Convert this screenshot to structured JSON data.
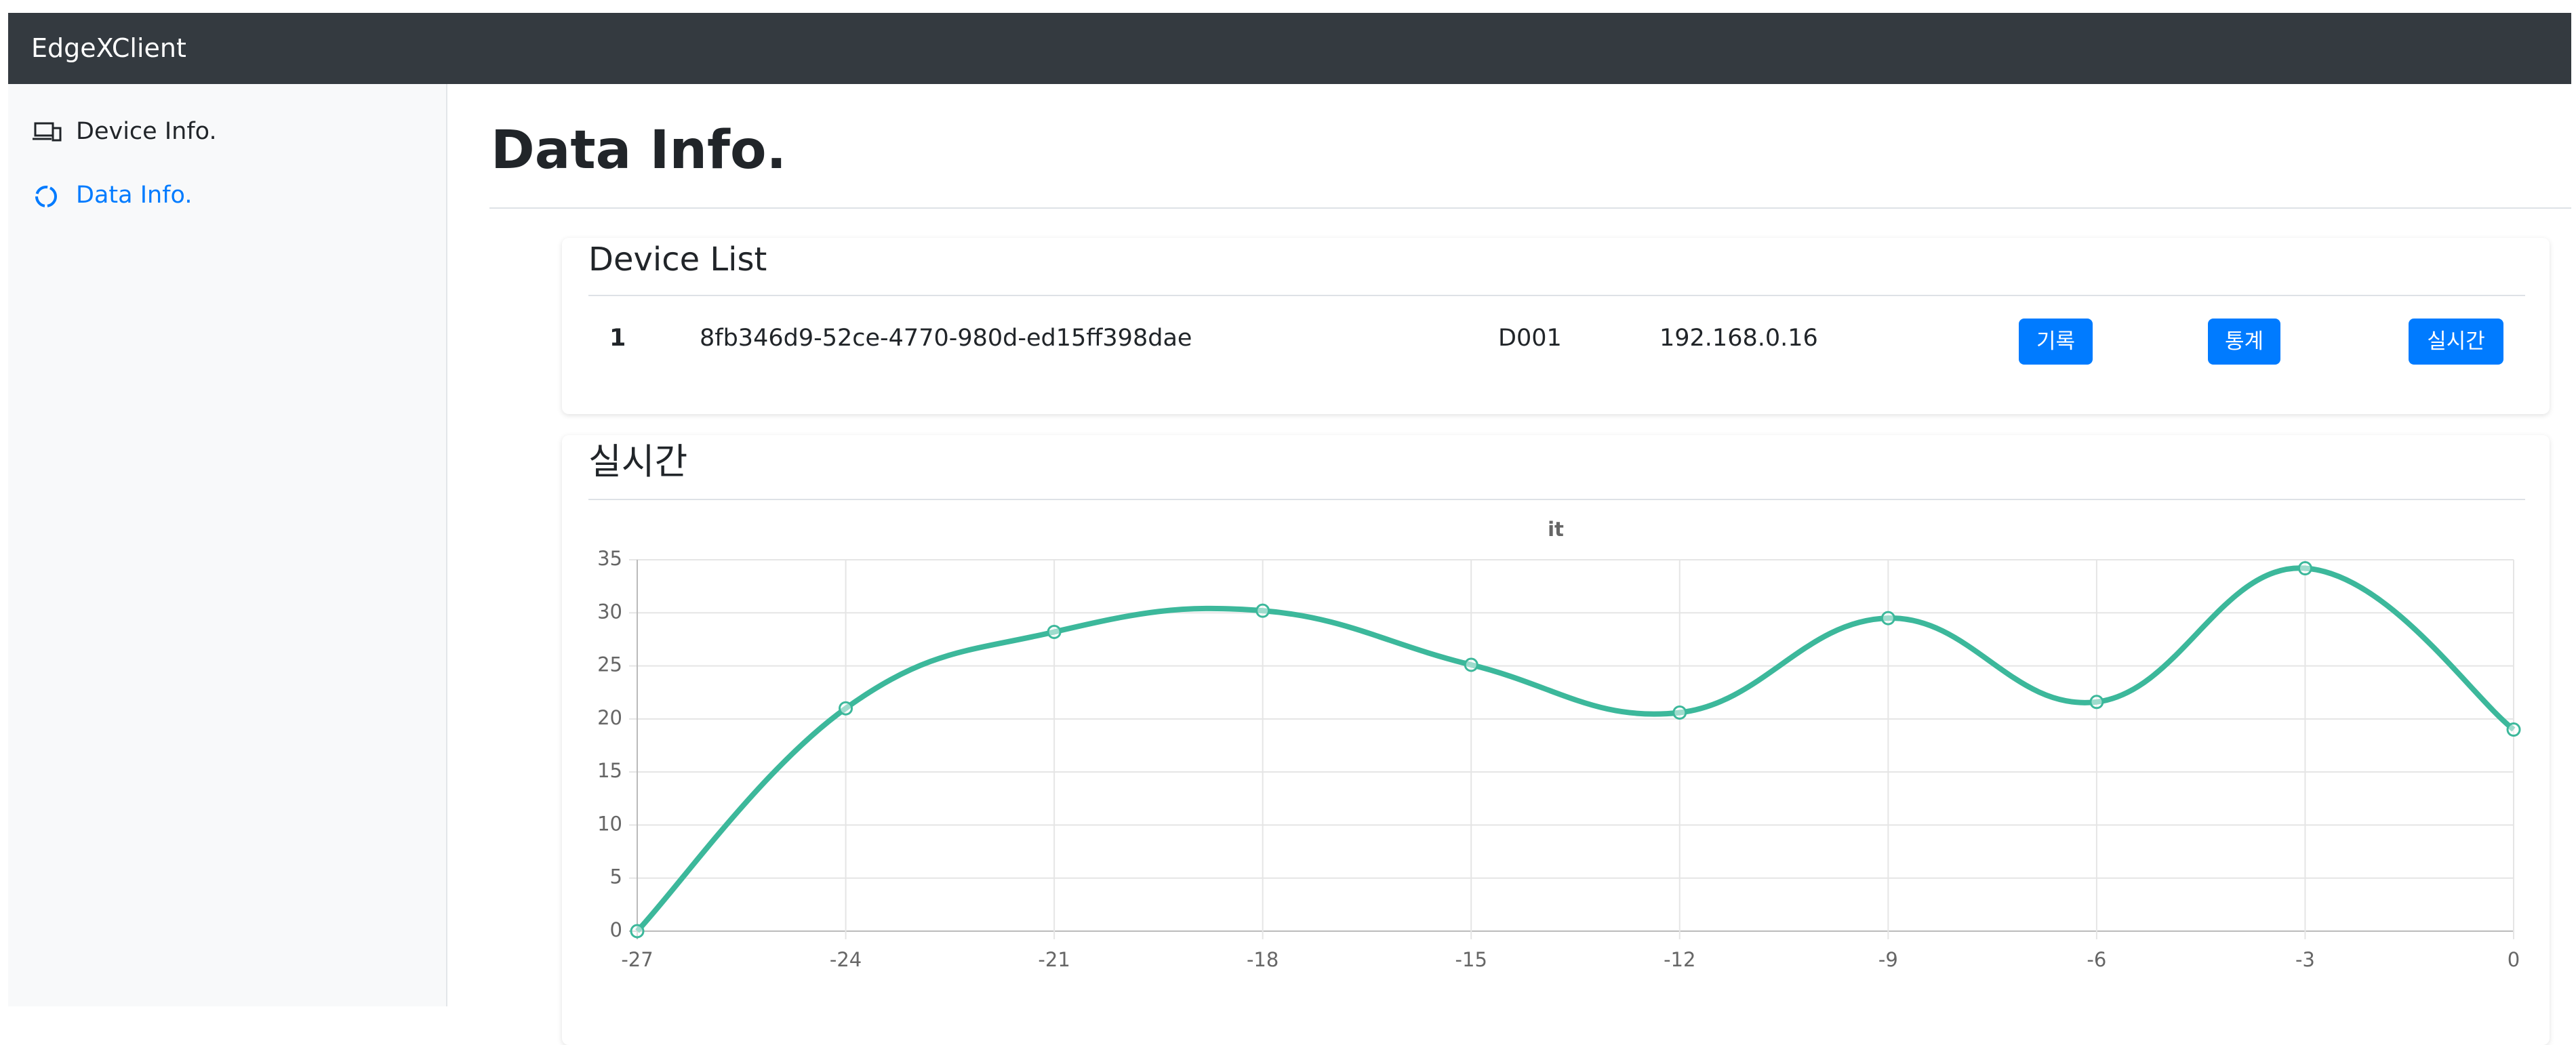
{
  "navbar": {
    "brand": "EdgeXClient"
  },
  "sidebar": {
    "items": [
      "Device Info.",
      "Data Info."
    ]
  },
  "page": {
    "title": "Data Info."
  },
  "device_list": {
    "title": "Device List",
    "rows": [
      [
        "1",
        "8fb346d9-52ce-4770-980d-ed15ff398dae",
        "D001",
        "192.168.0.16"
      ]
    ],
    "buttons": [
      "기록",
      "통계",
      "실시간"
    ]
  },
  "realtime": {
    "title": "실시간"
  },
  "chart_data": {
    "type": "line",
    "title": "it",
    "x": [
      -27,
      -24,
      -21,
      -18,
      -15,
      -12,
      -9,
      -6,
      -3,
      0
    ],
    "values": [
      0,
      21,
      28.2,
      30.2,
      25.1,
      20.6,
      29.5,
      21.6,
      34.2,
      19
    ],
    "color": "#3cb89b",
    "xlim": [
      -27,
      0
    ],
    "xticks": [
      -27,
      -24,
      -21,
      -18,
      -15,
      -12,
      -9,
      -6,
      -3,
      0
    ],
    "ylim": [
      0,
      35
    ],
    "yticks": [
      0,
      5,
      10,
      15,
      20,
      25,
      30,
      35
    ],
    "grid": true
  }
}
